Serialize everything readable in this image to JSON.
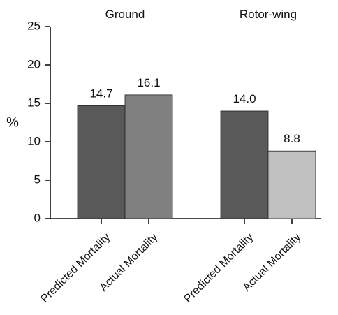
{
  "chart_data": {
    "type": "bar",
    "title": "",
    "ylabel": "%",
    "ylim": [
      0,
      25
    ],
    "yticks": [
      0,
      5,
      10,
      15,
      20,
      25
    ],
    "grid": false,
    "groups": [
      {
        "name": "Ground",
        "bars": [
          {
            "category": "Predicted Mortality",
            "value": 14.7,
            "label": "14.7",
            "color": "#595959"
          },
          {
            "category": "Actual Mortality",
            "value": 16.1,
            "label": "16.1",
            "color": "#808080"
          }
        ]
      },
      {
        "name": "Rotor-wing",
        "bars": [
          {
            "category": "Predicted Mortality",
            "value": 14.0,
            "label": "14.0",
            "color": "#595959"
          },
          {
            "category": "Actual Mortality",
            "value": 8.8,
            "label": "8.8",
            "color": "#c0c0c0"
          }
        ]
      }
    ]
  }
}
